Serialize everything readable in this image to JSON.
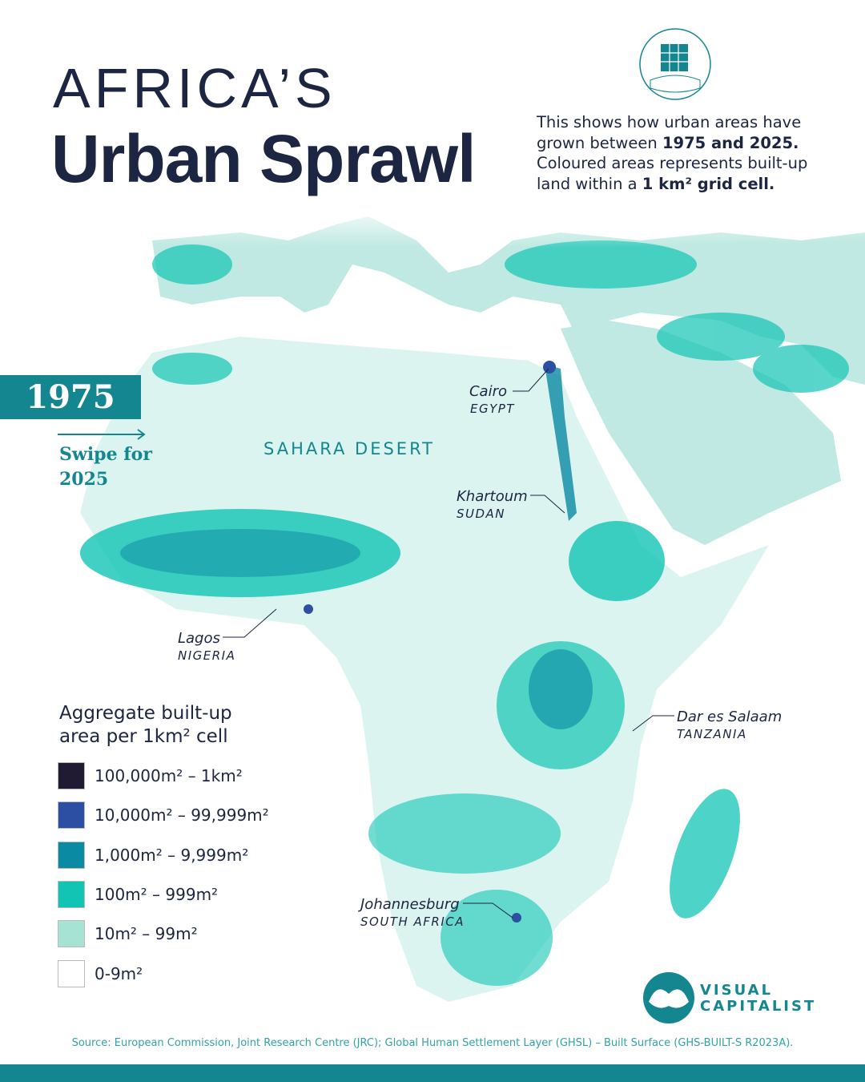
{
  "header": {
    "title_line1": "AFRICA’S",
    "title_line2": "Urban Sprawl"
  },
  "description": {
    "parts": [
      "This shows how urban areas have grown between ",
      "1975 and 2025.",
      " Coloured areas represents built-up land within a ",
      "1 km² grid cell."
    ]
  },
  "year_badge": "1975",
  "swipe": {
    "line1": "Swipe for",
    "line2": "2025"
  },
  "region_label": "SAHARA DESERT",
  "map_labels": [
    {
      "city": "Cairo",
      "country": "EGYPT"
    },
    {
      "city": "Khartoum",
      "country": "SUDAN"
    },
    {
      "city": "Lagos",
      "country": "NIGERIA"
    },
    {
      "city": "Dar es Salaam",
      "country": "TANZANIA"
    },
    {
      "city": "Johannesburg",
      "country": "SOUTH AFRICA"
    }
  ],
  "legend": {
    "title_line1": "Aggregate built-up",
    "title_line2": "area per 1km² cell",
    "items": [
      {
        "label": "100,000m² – 1km²",
        "color": "#211a33"
      },
      {
        "label": "10,000m² – 99,999m²",
        "color": "#2c4ea3"
      },
      {
        "label": "1,000m² – 9,999m²",
        "color": "#0a8aa3"
      },
      {
        "label": "100m² – 999m²",
        "color": "#12c4b4"
      },
      {
        "label": "10m² – 99m²",
        "color": "#a6e3d4"
      },
      {
        "label": "0-9m²",
        "color": "#ffffff"
      }
    ]
  },
  "logo": {
    "line1": "VISUAL",
    "line2": "CAPITALIST"
  },
  "source": "Source: European Commission, Joint Research Centre (JRC); Global Human Settlement Layer (GHSL) – Built Surface (GHS-BUILT-S R2023A)."
}
